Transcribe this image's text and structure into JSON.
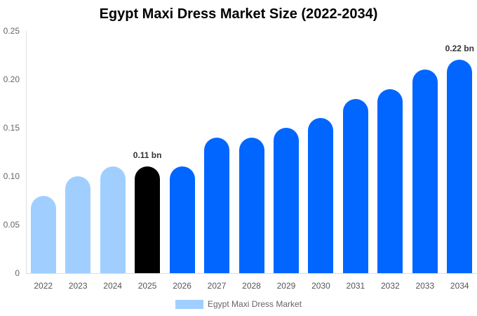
{
  "chart_data": {
    "type": "bar",
    "title": "Egypt Maxi Dress Market Size (2022-2034)",
    "xlabel": "",
    "ylabel": "",
    "ylim": [
      0,
      0.25
    ],
    "yticks": [
      "0",
      "0.05",
      "0.10",
      "0.15",
      "0.20",
      "0.25"
    ],
    "categories": [
      "2022",
      "2023",
      "2024",
      "2025",
      "2026",
      "2027",
      "2028",
      "2029",
      "2030",
      "2031",
      "2032",
      "2033",
      "2034"
    ],
    "series": [
      {
        "name": "Egypt Maxi Dress Market",
        "values": [
          0.08,
          0.1,
          0.11,
          0.11,
          0.11,
          0.14,
          0.14,
          0.15,
          0.16,
          0.18,
          0.19,
          0.21,
          0.22
        ]
      }
    ],
    "bar_colors": [
      "#a0cfff",
      "#a0cfff",
      "#a0cfff",
      "#000000",
      "#0066ff",
      "#0066ff",
      "#0066ff",
      "#0066ff",
      "#0066ff",
      "#0066ff",
      "#0066ff",
      "#0066ff",
      "#0066ff"
    ],
    "annotations": [
      {
        "category": "2025",
        "text": "0.11 bn"
      },
      {
        "category": "2034",
        "text": "0.22 bn"
      }
    ],
    "legend": {
      "position": "bottom",
      "label": "Egypt Maxi Dress Market",
      "color": "#a0cfff"
    },
    "grid": false
  }
}
